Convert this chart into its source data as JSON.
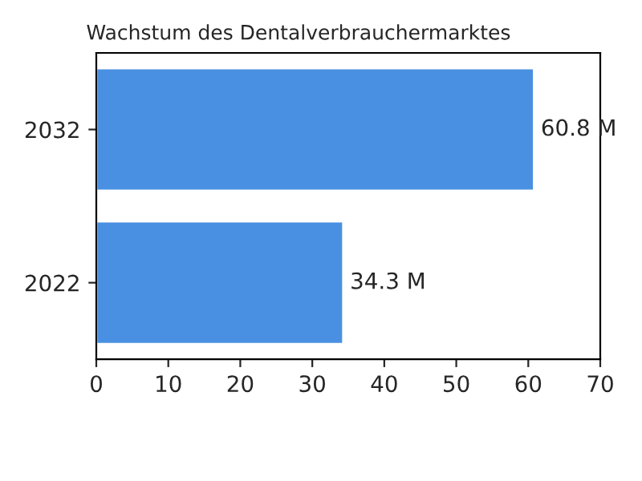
{
  "chart_data": {
    "type": "bar",
    "orientation": "horizontal",
    "title": "Wachstum des Dentalverbrauchermarktes",
    "categories": [
      "2032",
      "2022"
    ],
    "values": [
      60.8,
      34.3
    ],
    "value_labels": [
      "60.8 M",
      "34.3 M"
    ],
    "color": "#4a90e2",
    "xlim": [
      0,
      70
    ],
    "xticks": [
      0,
      10,
      20,
      30,
      40,
      50,
      60,
      70
    ],
    "grid": false,
    "legend": false
  }
}
